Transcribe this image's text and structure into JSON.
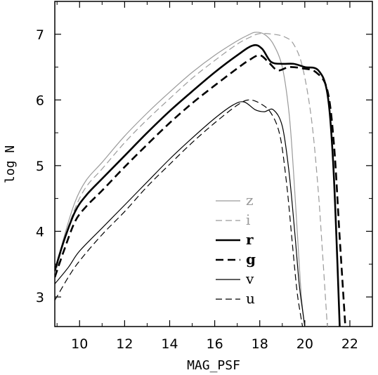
{
  "chart_data": {
    "type": "line",
    "title": "",
    "xlabel": "MAG_PSF",
    "ylabel": "log N",
    "xlim": [
      8.9,
      23.0
    ],
    "ylim": [
      2.55,
      7.5
    ],
    "xticks": [
      10,
      12,
      14,
      16,
      18,
      20,
      22
    ],
    "yticks": [
      3,
      4,
      5,
      6,
      7
    ],
    "xtick_labels": [
      "10",
      "12",
      "14",
      "16",
      "18",
      "20",
      "22"
    ],
    "ytick_labels": [
      "3",
      "4",
      "5",
      "6",
      "7"
    ],
    "grid": false,
    "legend_position": "bottom-center",
    "series": [
      {
        "name": "z",
        "color": "#9a9a9a",
        "dash": "solid",
        "width": "thin",
        "x": [
          8.9,
          9.3,
          9.8,
          10.3,
          11,
          12,
          13,
          14,
          15,
          16,
          17,
          17.5,
          17.8,
          18.2,
          18.6,
          19,
          19.3,
          19.5,
          19.7,
          19.85,
          20.0
        ],
        "y": [
          3.35,
          3.9,
          4.45,
          4.78,
          5.05,
          5.45,
          5.8,
          6.12,
          6.42,
          6.68,
          6.9,
          6.99,
          7.03,
          7.0,
          6.85,
          6.5,
          5.8,
          4.9,
          3.8,
          3.0,
          2.55
        ]
      },
      {
        "name": "i",
        "color": "#9a9a9a",
        "dash": "dashed",
        "width": "thin",
        "x": [
          8.9,
          9.3,
          9.8,
          10.3,
          11,
          12,
          13,
          14,
          15,
          16,
          17,
          17.6,
          18.0,
          18.6,
          19.1,
          19.5,
          19.9,
          20.3,
          20.6,
          20.8,
          21.0
        ],
        "y": [
          3.3,
          3.85,
          4.35,
          4.68,
          4.95,
          5.35,
          5.7,
          6.02,
          6.33,
          6.6,
          6.85,
          6.96,
          7.01,
          7.0,
          6.96,
          6.85,
          6.5,
          5.7,
          4.6,
          3.6,
          2.55
        ]
      },
      {
        "name": "r",
        "color": "#000000",
        "dash": "solid",
        "width": "thick",
        "x": [
          8.9,
          9.3,
          9.8,
          10.3,
          11,
          12,
          13,
          14,
          15,
          16,
          17,
          17.7,
          18.1,
          18.5,
          19.0,
          19.5,
          20.0,
          20.6,
          21.0,
          21.25,
          21.45,
          21.55
        ],
        "y": [
          3.4,
          3.85,
          4.3,
          4.55,
          4.8,
          5.15,
          5.5,
          5.83,
          6.13,
          6.42,
          6.68,
          6.83,
          6.78,
          6.58,
          6.55,
          6.55,
          6.5,
          6.45,
          6.1,
          5.1,
          3.5,
          2.55
        ]
      },
      {
        "name": "g",
        "color": "#000000",
        "dash": "dashed",
        "width": "thick",
        "x": [
          8.9,
          9.3,
          9.8,
          10.3,
          11,
          12,
          13,
          14,
          15,
          16,
          17,
          17.5,
          18.0,
          18.4,
          18.8,
          19.3,
          19.9,
          20.5,
          21.0,
          21.3,
          21.55,
          21.8
        ],
        "y": [
          3.3,
          3.7,
          4.15,
          4.38,
          4.62,
          4.98,
          5.32,
          5.65,
          5.95,
          6.22,
          6.48,
          6.6,
          6.68,
          6.57,
          6.45,
          6.5,
          6.48,
          6.42,
          6.15,
          5.3,
          3.9,
          2.55
        ]
      },
      {
        "name": "v",
        "color": "#000000",
        "dash": "solid",
        "width": "thin",
        "x": [
          8.9,
          9.5,
          10.0,
          11,
          12,
          13,
          14,
          15,
          16,
          16.8,
          17.3,
          17.8,
          18.2,
          18.6,
          19.0,
          19.3,
          19.55,
          19.75,
          19.9,
          20.0
        ],
        "y": [
          3.2,
          3.45,
          3.7,
          4.05,
          4.4,
          4.75,
          5.1,
          5.42,
          5.72,
          5.92,
          5.97,
          5.85,
          5.82,
          5.85,
          5.6,
          4.9,
          4.0,
          3.2,
          2.8,
          2.55
        ]
      },
      {
        "name": "u",
        "color": "#000000",
        "dash": "dashed",
        "width": "thin",
        "x": [
          8.9,
          9.5,
          10.0,
          11,
          12,
          13,
          14,
          15,
          16,
          17,
          17.5,
          18.0,
          18.5,
          18.9,
          19.2,
          19.45,
          19.65,
          19.8,
          19.9
        ],
        "y": [
          2.95,
          3.3,
          3.55,
          3.95,
          4.3,
          4.68,
          5.02,
          5.35,
          5.65,
          5.92,
          6.0,
          5.95,
          5.8,
          5.45,
          4.7,
          3.8,
          3.1,
          2.75,
          2.55
        ]
      }
    ]
  }
}
